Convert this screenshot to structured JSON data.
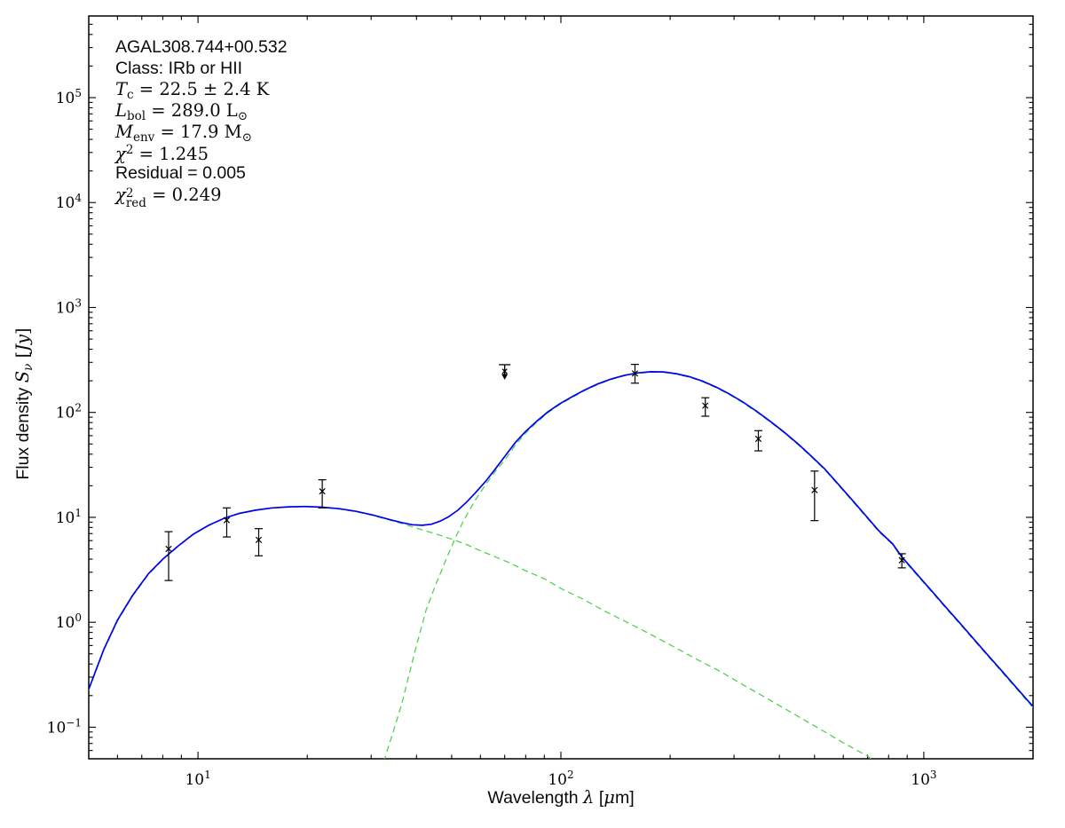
{
  "annotations": [
    {
      "id": "source-name",
      "text": "AGAL308.744+00.532",
      "parts": [
        {
          "t": "AGAL308.744+00.532",
          "c": "sans"
        }
      ]
    },
    {
      "id": "class",
      "text": "Class: IRb or HII",
      "parts": [
        {
          "t": "Class: IRb or HII",
          "c": "sans"
        }
      ]
    },
    {
      "id": "t-cold",
      "text": "T_c = 22.5 ± 2.4 K",
      "parts": [
        {
          "t": "T",
          "c": "mathit"
        },
        {
          "t": "c",
          "c": "sub"
        },
        {
          "t": " = 22.5 ± 2.4 K",
          "c": "serif"
        }
      ]
    },
    {
      "id": "l-bol",
      "text": "L_bol = 289.0 L_⊙",
      "parts": [
        {
          "t": "L",
          "c": "mathit"
        },
        {
          "t": "bol",
          "c": "sub"
        },
        {
          "t": " = 289.0 L",
          "c": "serif"
        },
        {
          "t": "⊙",
          "c": "sub"
        }
      ]
    },
    {
      "id": "m-env",
      "text": "M_env = 17.9 M_⊙",
      "parts": [
        {
          "t": "M",
          "c": "mathit"
        },
        {
          "t": "env",
          "c": "sub"
        },
        {
          "t": " = 17.9 M",
          "c": "serif"
        },
        {
          "t": "⊙",
          "c": "sub"
        }
      ]
    },
    {
      "id": "chi2",
      "text": "χ² = 1.245",
      "parts": [
        {
          "t": "χ",
          "c": "mathit"
        },
        {
          "t": "2",
          "c": "sup"
        },
        {
          "t": " = 1.245",
          "c": "serif"
        }
      ]
    },
    {
      "id": "residual",
      "text": "Residual = 0.005",
      "parts": [
        {
          "t": "Residual = 0.005",
          "c": "sans"
        }
      ]
    },
    {
      "id": "chi2-red",
      "text": "χ²_red = 0.249",
      "parts": [
        {
          "t": "χ",
          "c": "mathit"
        },
        {
          "c": "stack",
          "sup": "2",
          "sub": "red"
        },
        {
          "t": " = 0.249",
          "c": "serif"
        }
      ]
    }
  ],
  "axes": {
    "xlabel_parts": [
      {
        "t": "Wavelength ",
        "c": "sans"
      },
      {
        "t": "λ",
        "c": "mathit"
      },
      {
        "t": " [",
        "c": "sans"
      },
      {
        "t": "μ",
        "c": "mathit"
      },
      {
        "t": "m]",
        "c": "sans"
      }
    ],
    "ylabel_parts": [
      {
        "t": "Flux density ",
        "c": "sans"
      },
      {
        "t": "S",
        "c": "mathit"
      },
      {
        "t": "ν",
        "c": "subit"
      },
      {
        "t": " [",
        "c": "serif"
      },
      {
        "t": "Jy",
        "c": "mathit"
      },
      {
        "t": "]",
        "c": "serif"
      }
    ]
  },
  "chart_data": {
    "type": "line",
    "title": "AGAL308.744+00.532",
    "xlabel": "Wavelength λ [μm]",
    "ylabel": "Flux density S_ν [Jy]",
    "xscale": "log",
    "yscale": "log",
    "xlim": [
      5,
      2000
    ],
    "ylim": [
      0.05,
      600000
    ],
    "grid": false,
    "tick_base": "10",
    "x_tick_exponents": [
      1,
      2,
      3
    ],
    "y_tick_exponents": [
      -1,
      0,
      1,
      2,
      3,
      4,
      5
    ],
    "colors": {
      "model": "#0000f0",
      "components": "#50d250",
      "markers": "#000000",
      "frame": "#000000"
    },
    "series": [
      {
        "name": "warm-component",
        "legend": null,
        "style": "dashed",
        "color_key": "components",
        "points": [
          [
            5,
            0.226
          ],
          [
            5.5,
            0.54
          ],
          [
            6,
            1.03
          ],
          [
            6.6,
            1.77
          ],
          [
            7.3,
            2.85
          ],
          [
            8,
            3.95
          ],
          [
            8.8,
            5.25
          ],
          [
            9.7,
            6.85
          ],
          [
            10.7,
            8.35
          ],
          [
            11.8,
            9.75
          ],
          [
            13,
            10.85
          ],
          [
            14.4,
            11.65
          ],
          [
            16,
            12.25
          ],
          [
            17.8,
            12.55
          ],
          [
            19.8,
            12.65
          ],
          [
            22,
            12.45
          ],
          [
            24.5,
            12.0
          ],
          [
            27.3,
            11.3
          ],
          [
            30.4,
            10.4
          ],
          [
            33.8,
            9.4
          ],
          [
            37,
            8.6
          ],
          [
            41,
            7.7
          ],
          [
            45,
            7.0
          ],
          [
            50,
            6.2
          ],
          [
            55,
            5.5
          ],
          [
            60,
            4.8
          ],
          [
            66,
            4.2
          ],
          [
            72,
            3.7
          ],
          [
            80,
            3.1
          ],
          [
            90,
            2.6
          ],
          [
            100,
            2.1
          ],
          [
            115,
            1.66
          ],
          [
            132,
            1.28
          ],
          [
            152,
            1.0
          ],
          [
            175,
            0.78
          ],
          [
            200,
            0.61
          ],
          [
            235,
            0.45
          ],
          [
            275,
            0.34
          ],
          [
            320,
            0.25
          ],
          [
            375,
            0.183
          ],
          [
            440,
            0.133
          ],
          [
            515,
            0.097
          ],
          [
            600,
            0.071
          ],
          [
            700,
            0.053
          ],
          [
            720,
            0.049
          ],
          [
            740,
            0.045
          ]
        ]
      },
      {
        "name": "cold-component",
        "legend": null,
        "style": "dashed",
        "color_key": "components",
        "points": [
          [
            32.5,
            0.047
          ],
          [
            34.5,
            0.09
          ],
          [
            36.5,
            0.17
          ],
          [
            38,
            0.3
          ],
          [
            40,
            0.6
          ],
          [
            42.5,
            1.3
          ],
          [
            45,
            2.2
          ],
          [
            48,
            3.8
          ],
          [
            51,
            6.2
          ],
          [
            54,
            9.4
          ],
          [
            58,
            14.5
          ],
          [
            62,
            20.5
          ],
          [
            66,
            27.5
          ],
          [
            70,
            35
          ],
          [
            75,
            49
          ],
          [
            80,
            63.5
          ],
          [
            86,
            81
          ],
          [
            92,
            99
          ],
          [
            99,
            118
          ],
          [
            107,
            138
          ],
          [
            116,
            161
          ],
          [
            126,
            184
          ],
          [
            137,
            205
          ],
          [
            150,
            224
          ],
          [
            163,
            236
          ],
          [
            177,
            242
          ],
          [
            192,
            241
          ],
          [
            208,
            232
          ],
          [
            226,
            217
          ],
          [
            246,
            196
          ],
          [
            268,
            172
          ],
          [
            292,
            147
          ],
          [
            318,
            123
          ],
          [
            347,
            100.5
          ],
          [
            378,
            80.8
          ],
          [
            412,
            64
          ],
          [
            449,
            49.7
          ],
          [
            489,
            37.9
          ],
          [
            533,
            28.5
          ],
          [
            581,
            20.3
          ],
          [
            633,
            14.5
          ],
          [
            690,
            10.3
          ],
          [
            753,
            7.25
          ],
          [
            820,
            5.5
          ],
          [
            870,
            4.1
          ],
          [
            974,
            2.63
          ],
          [
            1061,
            1.88
          ],
          [
            1157,
            1.33
          ],
          [
            1261,
            0.95
          ],
          [
            1374,
            0.675
          ],
          [
            1498,
            0.48
          ],
          [
            1633,
            0.342
          ],
          [
            1780,
            0.243
          ],
          [
            1940,
            0.173
          ],
          [
            2000,
            0.154
          ]
        ]
      },
      {
        "name": "total-model",
        "legend": null,
        "style": "solid",
        "color_key": "model",
        "points": [
          [
            5,
            0.23
          ],
          [
            5.5,
            0.55
          ],
          [
            6,
            1.05
          ],
          [
            6.6,
            1.8
          ],
          [
            7.3,
            2.9
          ],
          [
            8,
            4.0
          ],
          [
            8.8,
            5.3
          ],
          [
            9.7,
            6.9
          ],
          [
            10.7,
            8.4
          ],
          [
            11.8,
            9.8
          ],
          [
            13,
            10.9
          ],
          [
            14.4,
            11.7
          ],
          [
            16,
            12.3
          ],
          [
            17.8,
            12.6
          ],
          [
            19.8,
            12.7
          ],
          [
            22,
            12.5
          ],
          [
            24.5,
            12.1
          ],
          [
            27.3,
            11.4
          ],
          [
            30.4,
            10.5
          ],
          [
            33.8,
            9.5
          ],
          [
            36.5,
            8.9
          ],
          [
            39,
            8.5
          ],
          [
            41.5,
            8.4
          ],
          [
            44,
            8.6
          ],
          [
            46.5,
            9.2
          ],
          [
            49,
            10.1
          ],
          [
            52,
            11.7
          ],
          [
            55,
            14
          ],
          [
            58,
            17
          ],
          [
            62,
            22
          ],
          [
            66,
            29
          ],
          [
            70,
            38
          ],
          [
            75,
            52
          ],
          [
            80,
            66
          ],
          [
            86,
            83
          ],
          [
            92,
            101
          ],
          [
            99,
            120
          ],
          [
            107,
            140
          ],
          [
            116,
            163
          ],
          [
            126,
            186
          ],
          [
            137,
            207
          ],
          [
            150,
            226
          ],
          [
            163,
            238
          ],
          [
            177,
            244
          ],
          [
            192,
            243
          ],
          [
            208,
            234
          ],
          [
            226,
            219
          ],
          [
            246,
            198
          ],
          [
            268,
            174
          ],
          [
            292,
            149
          ],
          [
            318,
            125
          ],
          [
            347,
            102
          ],
          [
            378,
            82
          ],
          [
            412,
            65
          ],
          [
            449,
            50.5
          ],
          [
            489,
            38.5
          ],
          [
            533,
            29
          ],
          [
            581,
            20.7
          ],
          [
            633,
            14.8
          ],
          [
            690,
            10.5
          ],
          [
            753,
            7.4
          ],
          [
            820,
            5.6
          ],
          [
            870,
            4.2
          ],
          [
            974,
            2.69
          ],
          [
            1061,
            1.92
          ],
          [
            1157,
            1.36
          ],
          [
            1261,
            0.97
          ],
          [
            1374,
            0.69
          ],
          [
            1498,
            0.49
          ],
          [
            1633,
            0.35
          ],
          [
            1780,
            0.249
          ],
          [
            1940,
            0.177
          ],
          [
            2000,
            0.158
          ]
        ]
      }
    ],
    "data_points": [
      {
        "wavelength_um": 8.3,
        "flux_jy": 5.0,
        "lo_jy": 2.5,
        "hi_jy": 7.3
      },
      {
        "wavelength_um": 12.0,
        "flux_jy": 9.4,
        "lo_jy": 6.5,
        "hi_jy": 12.3
      },
      {
        "wavelength_um": 14.7,
        "flux_jy": 6.1,
        "lo_jy": 4.3,
        "hi_jy": 7.8
      },
      {
        "wavelength_um": 22.0,
        "flux_jy": 17.7,
        "lo_jy": 12.3,
        "hi_jy": 22.8
      },
      {
        "wavelength_um": 160,
        "flux_jy": 235,
        "lo_jy": 190,
        "hi_jy": 287
      },
      {
        "wavelength_um": 250,
        "flux_jy": 116,
        "lo_jy": 92,
        "hi_jy": 138
      },
      {
        "wavelength_um": 350,
        "flux_jy": 56,
        "lo_jy": 43,
        "hi_jy": 67
      },
      {
        "wavelength_um": 500,
        "flux_jy": 18.2,
        "lo_jy": 9.3,
        "hi_jy": 27.6
      },
      {
        "wavelength_um": 870,
        "flux_jy": 3.9,
        "lo_jy": 3.3,
        "hi_jy": 4.5
      }
    ],
    "upper_limit": {
      "wavelength_um": 70,
      "limit_jy": 247,
      "cap_jy": 285,
      "tip_jy": 205
    }
  }
}
